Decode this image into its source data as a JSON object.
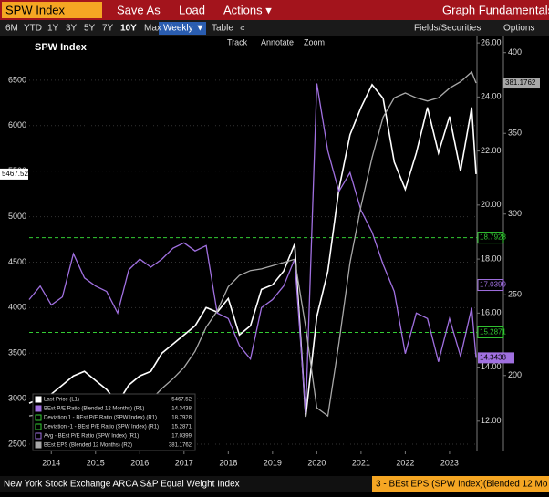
{
  "ui": {
    "security": "SPW Index",
    "menu": [
      "Save As",
      "Load",
      "Actions ▾"
    ],
    "graph_button": "Graph Fundamentals",
    "ranges": [
      "6M",
      "YTD",
      "1Y",
      "3Y",
      "5Y",
      "7Y",
      "10Y",
      "Max"
    ],
    "frequency": "Weekly ▼",
    "table": "Table",
    "collapse": "«",
    "fields": "Fields/Securities",
    "options": "Options",
    "tools": [
      "Track",
      "Annotate",
      "Zoom"
    ],
    "footer_left": "New York Stock Exchange ARCA S&P Equal Weight Index",
    "footer_right": "3 - BEst EPS (SPW Index)(Blended 12 Mo"
  },
  "chart_data": {
    "type": "line",
    "title": "SPW Index",
    "x": [
      2014.0,
      2014.25,
      2014.5,
      2014.75,
      2015.0,
      2015.25,
      2015.5,
      2015.75,
      2016.0,
      2016.25,
      2016.5,
      2016.75,
      2017.0,
      2017.25,
      2017.5,
      2017.75,
      2018.0,
      2018.25,
      2018.5,
      2018.75,
      2019.0,
      2019.25,
      2019.5,
      2019.75,
      2020.0,
      2020.25,
      2020.5,
      2020.75,
      2021.0,
      2021.25,
      2021.5,
      2021.75,
      2022.0,
      2022.25,
      2022.5,
      2022.75,
      2023.0,
      2023.25,
      2023.5,
      2023.75,
      2024.0,
      2024.1
    ],
    "xlim": [
      2014.0,
      2024.12
    ],
    "xticks": [
      {
        "value": 2014.5,
        "label": "2014"
      },
      {
        "value": 2015.5,
        "label": "2015"
      },
      {
        "value": 2016.5,
        "label": "2016"
      },
      {
        "value": 2017.5,
        "label": "2017"
      },
      {
        "value": 2018.5,
        "label": "2018"
      },
      {
        "value": 2019.5,
        "label": "2019"
      },
      {
        "value": 2020.5,
        "label": "2020"
      },
      {
        "value": 2021.5,
        "label": "2021"
      },
      {
        "value": 2022.5,
        "label": "2022"
      },
      {
        "value": 2023.5,
        "label": "2023"
      }
    ],
    "ylim": [
      2420,
      6980
    ],
    "yticks": [
      2500,
      3000,
      3500,
      4000,
      4500,
      5000,
      5500,
      6000,
      6500
    ],
    "y2lim": [
      10.88,
      26.24
    ],
    "y2ticks": [
      {
        "value": 12,
        "label": "12.00"
      },
      {
        "value": 14,
        "label": "14.00"
      },
      {
        "value": 16,
        "label": "16.00"
      },
      {
        "value": 18,
        "label": "18.00"
      },
      {
        "value": 20,
        "label": "20.00"
      },
      {
        "value": 22,
        "label": "22.00"
      },
      {
        "value": 24,
        "label": "24.00"
      },
      {
        "value": 26,
        "label": "26.00"
      }
    ],
    "y3lim": [
      153,
      410
    ],
    "y3ticks": [
      200,
      250,
      300,
      350,
      400
    ],
    "grid": true,
    "series": [
      {
        "name": "Last Price (L1)",
        "color": "#ffffff",
        "axis": "y",
        "values": [
          2950,
          3000,
          3050,
          3150,
          3250,
          3300,
          3200,
          3100,
          2950,
          3150,
          3250,
          3300,
          3500,
          3600,
          3700,
          3800,
          4000,
          3950,
          4100,
          3700,
          3800,
          4200,
          4250,
          4400,
          4700,
          2800,
          3900,
          4400,
          5300,
          5900,
          6200,
          6450,
          6300,
          5600,
          5300,
          5700,
          6200,
          5700,
          6100,
          5500,
          6200,
          5467.52
        ]
      },
      {
        "name": "BEst P/E Ratio (Blended 12 Months) (R1)",
        "color": "#a070e0",
        "axis": "y2",
        "values": [
          16.5,
          17.0,
          16.3,
          16.6,
          18.2,
          17.3,
          17.0,
          16.8,
          16.0,
          17.6,
          18.0,
          17.7,
          18.0,
          18.4,
          18.6,
          18.3,
          18.5,
          16.0,
          15.8,
          14.8,
          14.3,
          16.2,
          16.5,
          17.0,
          18.0,
          12.3,
          24.5,
          22.0,
          20.5,
          21.2,
          19.8,
          19.0,
          17.8,
          16.8,
          14.5,
          16.0,
          15.8,
          14.2,
          15.8,
          14.4,
          16.2,
          14.3438
        ]
      },
      {
        "name": "BEst EPS (Blended 12 Months) (R2)",
        "color": "#a8a8a8",
        "axis": "y3",
        "values": [
          175,
          176,
          178,
          180,
          182,
          181,
          180,
          178,
          177,
          178,
          180,
          185,
          192,
          198,
          205,
          215,
          230,
          240,
          255,
          262,
          265,
          266,
          268,
          270,
          272,
          230,
          180,
          175,
          220,
          270,
          305,
          335,
          360,
          372,
          375,
          372,
          370,
          372,
          378,
          382,
          388,
          381.1762
        ]
      }
    ],
    "reference_lines": [
      {
        "name": "Deviation 1 - BEst P/E Ratio (SPW Index) (R1)",
        "color": "#33cc33",
        "axis": "y2",
        "value": 18.7928
      },
      {
        "name": "Deviation -1 - BEst P/E Ratio (SPW Index) (R1)",
        "color": "#33cc33",
        "axis": "y2",
        "value": 15.2871
      },
      {
        "name": "Avg - BEst P/E Ratio (SPW Index) (R1)",
        "color": "#a070e0",
        "axis": "y2",
        "value": 17.0399
      }
    ]
  }
}
